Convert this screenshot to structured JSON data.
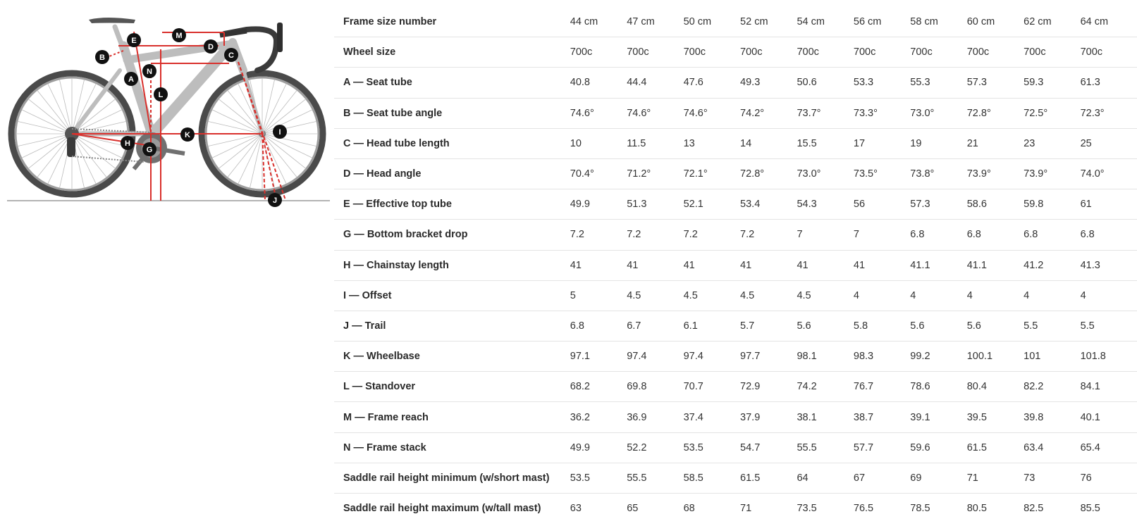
{
  "diagram": {
    "markers": [
      "A",
      "B",
      "C",
      "D",
      "E",
      "G",
      "H",
      "I",
      "J",
      "K",
      "L",
      "M",
      "N"
    ],
    "measure_color": "#d9302c",
    "frame_color": "#bdbdbd",
    "tire_color": "#555555"
  },
  "table": {
    "header_label": "Frame size number",
    "sizes": [
      "44 cm",
      "47 cm",
      "50 cm",
      "52 cm",
      "54 cm",
      "56 cm",
      "58 cm",
      "60 cm",
      "62 cm",
      "64 cm"
    ],
    "rows": [
      {
        "label": "Wheel size",
        "values": [
          "700c",
          "700c",
          "700c",
          "700c",
          "700c",
          "700c",
          "700c",
          "700c",
          "700c",
          "700c"
        ]
      },
      {
        "label": "A — Seat tube",
        "values": [
          "40.8",
          "44.4",
          "47.6",
          "49.3",
          "50.6",
          "53.3",
          "55.3",
          "57.3",
          "59.3",
          "61.3"
        ]
      },
      {
        "label": "B — Seat tube angle",
        "values": [
          "74.6°",
          "74.6°",
          "74.6°",
          "74.2°",
          "73.7°",
          "73.3°",
          "73.0°",
          "72.8°",
          "72.5°",
          "72.3°"
        ]
      },
      {
        "label": "C — Head tube length",
        "values": [
          "10",
          "11.5",
          "13",
          "14",
          "15.5",
          "17",
          "19",
          "21",
          "23",
          "25"
        ]
      },
      {
        "label": "D — Head angle",
        "values": [
          "70.4°",
          "71.2°",
          "72.1°",
          "72.8°",
          "73.0°",
          "73.5°",
          "73.8°",
          "73.9°",
          "73.9°",
          "74.0°"
        ]
      },
      {
        "label": "E — Effective top tube",
        "values": [
          "49.9",
          "51.3",
          "52.1",
          "53.4",
          "54.3",
          "56",
          "57.3",
          "58.6",
          "59.8",
          "61"
        ]
      },
      {
        "label": "G — Bottom bracket drop",
        "values": [
          "7.2",
          "7.2",
          "7.2",
          "7.2",
          "7",
          "7",
          "6.8",
          "6.8",
          "6.8",
          "6.8"
        ]
      },
      {
        "label": "H — Chainstay length",
        "values": [
          "41",
          "41",
          "41",
          "41",
          "41",
          "41",
          "41.1",
          "41.1",
          "41.2",
          "41.3"
        ]
      },
      {
        "label": "I — Offset",
        "values": [
          "5",
          "4.5",
          "4.5",
          "4.5",
          "4.5",
          "4",
          "4",
          "4",
          "4",
          "4"
        ]
      },
      {
        "label": "J — Trail",
        "values": [
          "6.8",
          "6.7",
          "6.1",
          "5.7",
          "5.6",
          "5.8",
          "5.6",
          "5.6",
          "5.5",
          "5.5"
        ]
      },
      {
        "label": "K — Wheelbase",
        "values": [
          "97.1",
          "97.4",
          "97.4",
          "97.7",
          "98.1",
          "98.3",
          "99.2",
          "100.1",
          "101",
          "101.8"
        ]
      },
      {
        "label": "L — Standover",
        "values": [
          "68.2",
          "69.8",
          "70.7",
          "72.9",
          "74.2",
          "76.7",
          "78.6",
          "80.4",
          "82.2",
          "84.1"
        ]
      },
      {
        "label": "M — Frame reach",
        "values": [
          "36.2",
          "36.9",
          "37.4",
          "37.9",
          "38.1",
          "38.7",
          "39.1",
          "39.5",
          "39.8",
          "40.1"
        ]
      },
      {
        "label": "N — Frame stack",
        "values": [
          "49.9",
          "52.2",
          "53.5",
          "54.7",
          "55.5",
          "57.7",
          "59.6",
          "61.5",
          "63.4",
          "65.4"
        ]
      },
      {
        "label": "Saddle rail height minimum (w/short mast)",
        "values": [
          "53.5",
          "55.5",
          "58.5",
          "61.5",
          "64",
          "67",
          "69",
          "71",
          "73",
          "76"
        ]
      },
      {
        "label": "Saddle rail height maximum (w/tall mast)",
        "values": [
          "63",
          "65",
          "68",
          "71",
          "73.5",
          "76.5",
          "78.5",
          "80.5",
          "82.5",
          "85.5"
        ]
      }
    ]
  }
}
